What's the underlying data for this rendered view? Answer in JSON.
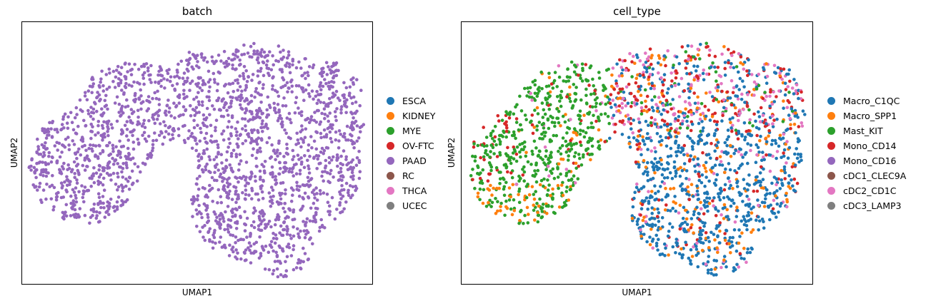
{
  "chart_data": [
    {
      "type": "scatter",
      "title": "batch",
      "xlabel": "UMAP1",
      "ylabel": "UMAP2",
      "ticks": false,
      "legend_position": "right",
      "legend": [
        {
          "label": "ESCA",
          "color": "#1f77b4"
        },
        {
          "label": "KIDNEY",
          "color": "#ff7f0e"
        },
        {
          "label": "MYE",
          "color": "#2ca02c"
        },
        {
          "label": "OV-FTC",
          "color": "#d62728"
        },
        {
          "label": "PAAD",
          "color": "#9467bd"
        },
        {
          "label": "RC",
          "color": "#8c564b"
        },
        {
          "label": "THCA",
          "color": "#e377c2"
        },
        {
          "label": "UCEC",
          "color": "#7f7f7f"
        }
      ],
      "visible_points_color": "#9467bd"
    },
    {
      "type": "scatter",
      "title": "cell_type",
      "xlabel": "UMAP1",
      "ylabel": "UMAP2",
      "ticks": false,
      "legend_position": "right",
      "legend": [
        {
          "label": "Macro_C1QC",
          "color": "#1f77b4"
        },
        {
          "label": "Macro_SPP1",
          "color": "#ff7f0e"
        },
        {
          "label": "Mast_KIT",
          "color": "#2ca02c"
        },
        {
          "label": "Mono_CD14",
          "color": "#d62728"
        },
        {
          "label": "Mono_CD16",
          "color": "#9467bd"
        },
        {
          "label": "cDC1_CLEC9A",
          "color": "#8c564b"
        },
        {
          "label": "cDC2_CD1C",
          "color": "#e377c2"
        },
        {
          "label": "cDC3_LAMP3",
          "color": "#7f7f7f"
        }
      ]
    }
  ]
}
